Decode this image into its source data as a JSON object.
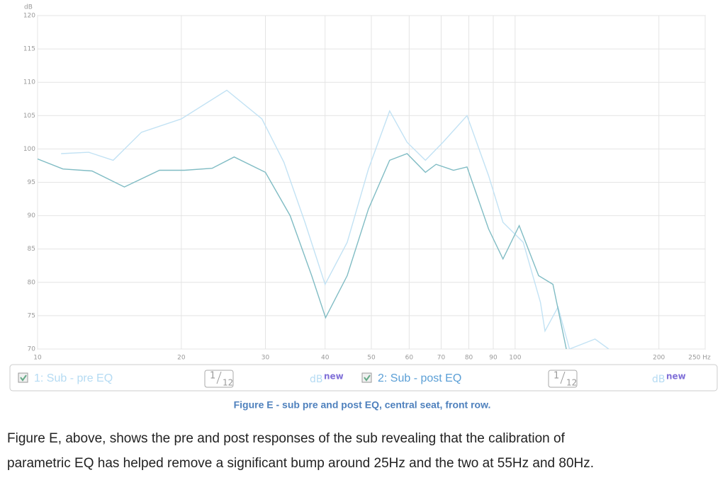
{
  "chart_data": {
    "type": "line",
    "y_label": "dB",
    "log_x": true,
    "grid": true,
    "xlim": [
      10,
      250
    ],
    "ylim": [
      70,
      120
    ],
    "xticks": [
      10,
      20,
      30,
      40,
      50,
      60,
      70,
      80,
      90,
      100,
      200,
      {
        "value": 250,
        "label": "250 Hz"
      }
    ],
    "yticks": [
      70,
      75,
      80,
      85,
      90,
      95,
      100,
      105,
      110,
      115,
      120
    ],
    "series": [
      {
        "name": "1: Sub - pre EQ",
        "color": "#c2e2f4",
        "x": [
          11.2,
          12.8,
          14.4,
          16.5,
          20,
          24.9,
          29.5,
          32.8,
          36.3,
          40,
          44.5,
          49.3,
          54.6,
          59.4,
          64.9,
          70.6,
          79.3,
          88,
          94.3,
          104,
          113,
          115.5,
          123,
          130,
          147,
          157
        ],
        "values": [
          99.3,
          99.5,
          98.3,
          102.5,
          104.5,
          108.8,
          104.5,
          98,
          89,
          79.7,
          86,
          97,
          105.7,
          101,
          98.3,
          101,
          105,
          96,
          89,
          86,
          77,
          72.7,
          76.3,
          70,
          71.5,
          70
        ]
      },
      {
        "name": "2: Sub - post EQ",
        "color": "#80bcc4",
        "x": [
          10,
          11.3,
          13,
          15.2,
          18,
          20.3,
          23.2,
          25.8,
          30,
          33.8,
          37.5,
          40.1,
          44.5,
          49.3,
          54.6,
          59.4,
          64.9,
          68.3,
          74.3,
          79.3,
          88,
          94.3,
          102,
          112,
          120,
          128
        ],
        "values": [
          98.5,
          97,
          96.7,
          94.3,
          96.8,
          96.8,
          97.1,
          98.8,
          96.5,
          90,
          81,
          74.7,
          81,
          91,
          98.3,
          99.3,
          96.5,
          97.7,
          96.8,
          97.3,
          88,
          83.5,
          88.5,
          81,
          79.7,
          70
        ]
      }
    ]
  },
  "legend_controls": [
    {
      "smoothing_num": "1",
      "smoothing_den": "12",
      "unit": "dB",
      "badge": "new"
    },
    {
      "smoothing_num": "1",
      "smoothing_den": "12",
      "unit": "dB",
      "badge": "new"
    }
  ],
  "caption": "Figure E - sub pre and post EQ, central seat, front row.",
  "paragraph": [
    "Figure E, above, shows the pre and post responses of the sub revealing that the calibration of",
    "parametric EQ has helped remove a significant bump around 25Hz and the two at 55Hz and 80Hz."
  ]
}
